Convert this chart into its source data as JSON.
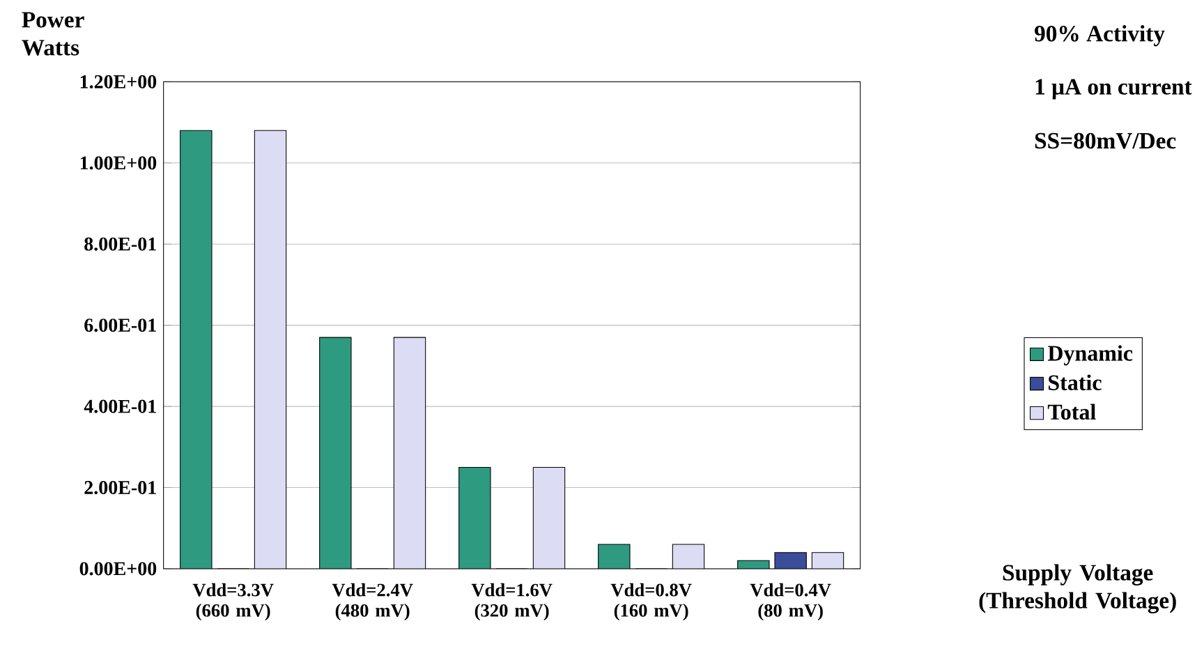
{
  "chart_data": {
    "type": "bar",
    "ylabel": "Power Watts",
    "categories": [
      "Vdd=3.3V (660 mV)",
      "Vdd=2.4V (480 mV)",
      "Vdd=1.6V (320 mV)",
      "Vdd=0.8V (160 mV)",
      "Vdd=0.4V (80 mV)"
    ],
    "series": [
      {
        "name": "Dynamic",
        "color": "#2e9a80",
        "values": [
          1.08,
          0.57,
          0.25,
          0.06,
          0.02
        ]
      },
      {
        "name": "Static",
        "color": "#3a4c9a",
        "values": [
          0,
          0,
          0,
          0,
          0.04
        ]
      },
      {
        "name": "Total",
        "color": "#dcdcf4",
        "values": [
          1.08,
          0.57,
          0.25,
          0.06,
          0.04
        ]
      }
    ],
    "ylim": [
      0,
      1.2
    ],
    "yticks": [
      {
        "value": 0,
        "label": "0.00E+00"
      },
      {
        "value": 0.2,
        "label": "2.00E-01"
      },
      {
        "value": 0.4,
        "label": "4.00E-01"
      },
      {
        "value": 0.6,
        "label": "6.00E-01"
      },
      {
        "value": 0.8,
        "label": "8.00E-01"
      },
      {
        "value": 1.0,
        "label": "1.00E+00"
      },
      {
        "value": 1.2,
        "label": "1.20E+00"
      }
    ],
    "grid": "y",
    "legend": "right",
    "annotations": [
      "90% Activity",
      "1 μA on current",
      "SS=80mV/Dec",
      "Supply Voltage (Threshold Voltage)"
    ]
  }
}
